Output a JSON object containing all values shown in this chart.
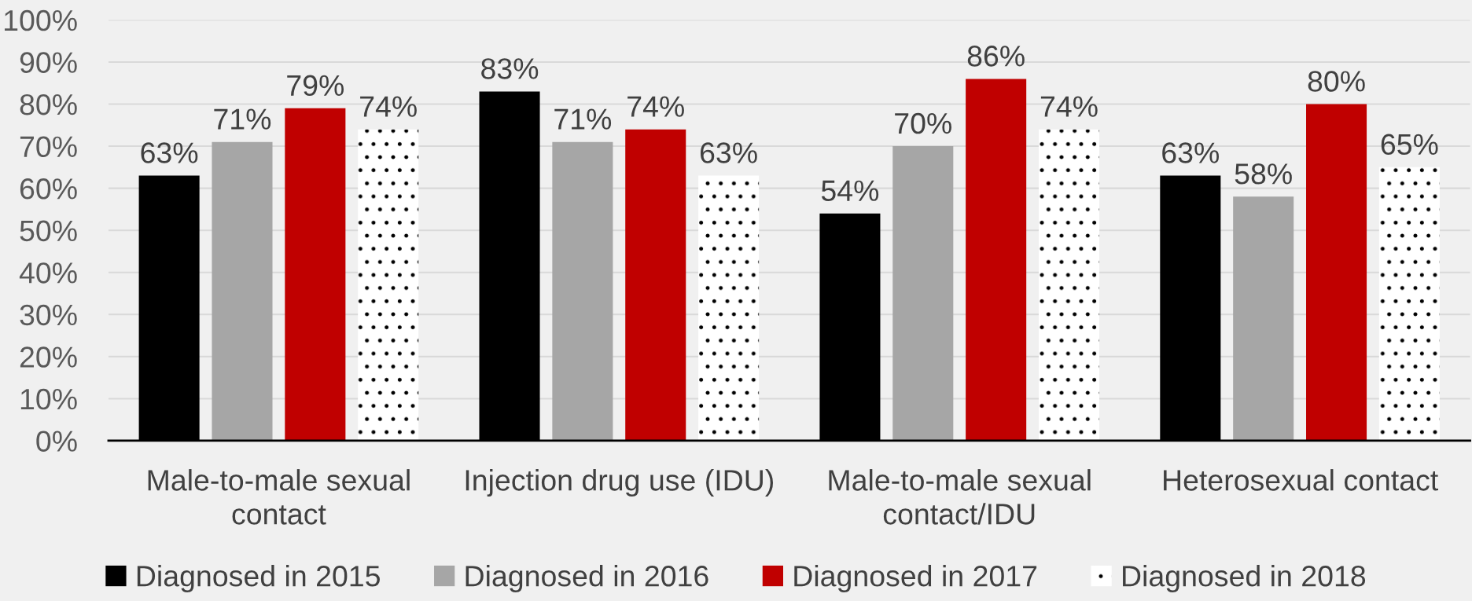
{
  "chart_data": {
    "type": "bar",
    "categories": [
      "Male-to-male sexual contact",
      "Injection drug use (IDU)",
      "Male-to-male sexual contact/IDU",
      "Heterosexual contact"
    ],
    "series": [
      {
        "name": "Diagnosed in 2015",
        "color": "#000000",
        "values": [
          63,
          83,
          54,
          63
        ],
        "value_labels": [
          "63%",
          "83%",
          "54%",
          "63%"
        ]
      },
      {
        "name": "Diagnosed in 2016",
        "color": "#a6a6a6",
        "values": [
          71,
          71,
          70,
          58
        ],
        "value_labels": [
          "71%",
          "71%",
          "70%",
          "58%"
        ]
      },
      {
        "name": "Diagnosed in 2017",
        "color": "#c00000",
        "values": [
          79,
          74,
          86,
          80
        ],
        "value_labels": [
          "79%",
          "74%",
          "86%",
          "80%"
        ]
      },
      {
        "name": "Diagnosed in 2018",
        "color": "#ffffff",
        "values": [
          74,
          63,
          74,
          65
        ],
        "value_labels": [
          "74%",
          "63%",
          "74%",
          "65%"
        ]
      }
    ],
    "ylim": [
      0,
      100
    ],
    "yticks": [
      {
        "value": 0,
        "label": "0%"
      },
      {
        "value": 10,
        "label": "10%"
      },
      {
        "value": 20,
        "label": "20%"
      },
      {
        "value": 30,
        "label": "30%"
      },
      {
        "value": 40,
        "label": "40%"
      },
      {
        "value": 50,
        "label": "50%"
      },
      {
        "value": 60,
        "label": "60%"
      },
      {
        "value": 70,
        "label": "70%"
      },
      {
        "value": 80,
        "label": "80%"
      },
      {
        "value": 90,
        "label": "90%"
      },
      {
        "value": 100,
        "label": "100%"
      }
    ],
    "grid": "y",
    "legend": "bottom"
  }
}
